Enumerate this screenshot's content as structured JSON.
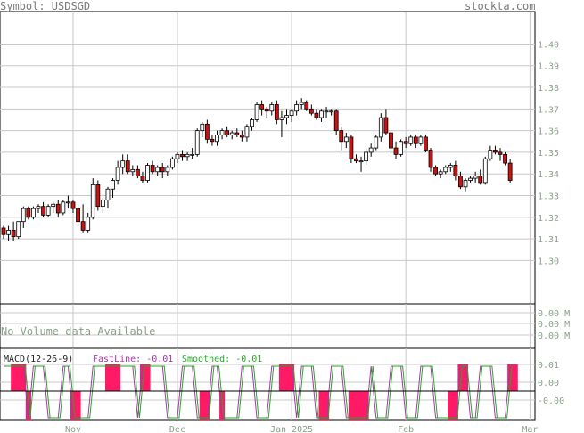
{
  "header": {
    "symbol_label": "Symbol: USDSGD",
    "site": "stockta.com"
  },
  "volume": {
    "no_data_text": "No Volume data Available",
    "axis_labels": [
      "0.00 M",
      "0.00 M",
      "0.00 M"
    ]
  },
  "macd": {
    "label": "MACD(12-26-9)",
    "fast_label": "FastLine: -0.01",
    "smoothed_label": "Smoothed: -0.01",
    "axis_labels": [
      "0.01",
      "0.00",
      "-0.00"
    ],
    "colors": {
      "fast": "#aa33aa",
      "smoothed": "#22aa22",
      "hist": "#ff1a66"
    }
  },
  "colors": {
    "grid": "#c8c8c8",
    "up": "#ffffff",
    "down": "#cc1111",
    "label": "#8aa08a"
  },
  "chart_data": {
    "type": "candlestick",
    "title": "",
    "price_axis": {
      "ylim": [
        1.28,
        1.415
      ],
      "ticks": [
        1.3,
        1.31,
        1.32,
        1.33,
        1.34,
        1.35,
        1.36,
        1.37,
        1.38,
        1.39,
        1.4
      ]
    },
    "x_ticks": [
      {
        "label": "Nov",
        "index": 14
      },
      {
        "label": "Dec",
        "index": 35
      },
      {
        "label": "Jan 2025",
        "index": 58
      },
      {
        "label": "Feb",
        "index": 81
      },
      {
        "label": "Mar",
        "index": 106
      }
    ],
    "ohlc": [
      [
        1.315,
        1.316,
        1.31,
        1.312
      ],
      [
        1.312,
        1.316,
        1.309,
        1.314
      ],
      [
        1.314,
        1.318,
        1.309,
        1.311
      ],
      [
        1.311,
        1.318,
        1.31,
        1.318
      ],
      [
        1.318,
        1.325,
        1.315,
        1.324
      ],
      [
        1.324,
        1.325,
        1.319,
        1.32
      ],
      [
        1.32,
        1.325,
        1.319,
        1.324
      ],
      [
        1.324,
        1.326,
        1.322,
        1.325
      ],
      [
        1.325,
        1.327,
        1.32,
        1.321
      ],
      [
        1.321,
        1.326,
        1.32,
        1.325
      ],
      [
        1.325,
        1.327,
        1.322,
        1.326
      ],
      [
        1.326,
        1.328,
        1.32,
        1.322
      ],
      [
        1.322,
        1.328,
        1.321,
        1.327
      ],
      [
        1.327,
        1.33,
        1.324,
        1.327
      ],
      [
        1.327,
        1.328,
        1.322,
        1.324
      ],
      [
        1.324,
        1.326,
        1.316,
        1.318
      ],
      [
        1.318,
        1.326,
        1.313,
        1.314
      ],
      [
        1.314,
        1.322,
        1.313,
        1.32
      ],
      [
        1.32,
        1.338,
        1.319,
        1.335
      ],
      [
        1.335,
        1.337,
        1.323,
        1.325
      ],
      [
        1.325,
        1.329,
        1.322,
        1.328
      ],
      [
        1.328,
        1.334,
        1.324,
        1.333
      ],
      [
        1.333,
        1.338,
        1.329,
        1.337
      ],
      [
        1.337,
        1.346,
        1.335,
        1.343
      ],
      [
        1.343,
        1.349,
        1.34,
        1.346
      ],
      [
        1.346,
        1.349,
        1.34,
        1.341
      ],
      [
        1.341,
        1.344,
        1.339,
        1.342
      ],
      [
        1.342,
        1.344,
        1.338,
        1.339
      ],
      [
        1.339,
        1.341,
        1.336,
        1.337
      ],
      [
        1.337,
        1.345,
        1.336,
        1.344
      ],
      [
        1.344,
        1.346,
        1.34,
        1.341
      ],
      [
        1.341,
        1.344,
        1.339,
        1.343
      ],
      [
        1.343,
        1.345,
        1.338,
        1.341
      ],
      [
        1.341,
        1.344,
        1.339,
        1.343
      ],
      [
        1.343,
        1.348,
        1.342,
        1.347
      ],
      [
        1.347,
        1.35,
        1.345,
        1.349
      ],
      [
        1.349,
        1.351,
        1.346,
        1.348
      ],
      [
        1.348,
        1.35,
        1.346,
        1.349
      ],
      [
        1.349,
        1.352,
        1.347,
        1.349
      ],
      [
        1.349,
        1.361,
        1.348,
        1.36
      ],
      [
        1.36,
        1.364,
        1.357,
        1.363
      ],
      [
        1.363,
        1.365,
        1.354,
        1.356
      ],
      [
        1.356,
        1.358,
        1.353,
        1.355
      ],
      [
        1.355,
        1.36,
        1.353,
        1.358
      ],
      [
        1.358,
        1.361,
        1.356,
        1.36
      ],
      [
        1.36,
        1.362,
        1.357,
        1.358
      ],
      [
        1.358,
        1.36,
        1.356,
        1.359
      ],
      [
        1.359,
        1.361,
        1.357,
        1.358
      ],
      [
        1.358,
        1.36,
        1.355,
        1.357
      ],
      [
        1.357,
        1.363,
        1.355,
        1.362
      ],
      [
        1.362,
        1.366,
        1.36,
        1.365
      ],
      [
        1.365,
        1.373,
        1.364,
        1.372
      ],
      [
        1.372,
        1.374,
        1.367,
        1.37
      ],
      [
        1.37,
        1.371,
        1.366,
        1.369
      ],
      [
        1.369,
        1.373,
        1.367,
        1.372
      ],
      [
        1.372,
        1.374,
        1.363,
        1.365
      ],
      [
        1.365,
        1.369,
        1.357,
        1.366
      ],
      [
        1.366,
        1.37,
        1.363,
        1.367
      ],
      [
        1.367,
        1.37,
        1.364,
        1.369
      ],
      [
        1.369,
        1.374,
        1.367,
        1.372
      ],
      [
        1.372,
        1.375,
        1.37,
        1.373
      ],
      [
        1.373,
        1.374,
        1.369,
        1.37
      ],
      [
        1.37,
        1.372,
        1.367,
        1.368
      ],
      [
        1.368,
        1.37,
        1.365,
        1.366
      ],
      [
        1.366,
        1.37,
        1.364,
        1.369
      ],
      [
        1.369,
        1.371,
        1.366,
        1.369
      ],
      [
        1.369,
        1.37,
        1.367,
        1.369
      ],
      [
        1.369,
        1.37,
        1.358,
        1.36
      ],
      [
        1.36,
        1.362,
        1.351,
        1.355
      ],
      [
        1.355,
        1.359,
        1.352,
        1.357
      ],
      [
        1.357,
        1.358,
        1.345,
        1.347
      ],
      [
        1.347,
        1.349,
        1.345,
        1.346
      ],
      [
        1.346,
        1.348,
        1.341,
        1.346
      ],
      [
        1.346,
        1.352,
        1.344,
        1.35
      ],
      [
        1.35,
        1.354,
        1.348,
        1.352
      ],
      [
        1.352,
        1.358,
        1.351,
        1.357
      ],
      [
        1.357,
        1.368,
        1.355,
        1.366
      ],
      [
        1.366,
        1.37,
        1.358,
        1.359
      ],
      [
        1.359,
        1.361,
        1.351,
        1.352
      ],
      [
        1.352,
        1.355,
        1.347,
        1.349
      ],
      [
        1.349,
        1.356,
        1.348,
        1.355
      ],
      [
        1.355,
        1.357,
        1.352,
        1.354
      ],
      [
        1.354,
        1.358,
        1.353,
        1.357
      ],
      [
        1.357,
        1.358,
        1.352,
        1.354
      ],
      [
        1.354,
        1.358,
        1.353,
        1.357
      ],
      [
        1.357,
        1.358,
        1.35,
        1.351
      ],
      [
        1.351,
        1.352,
        1.341,
        1.343
      ],
      [
        1.343,
        1.344,
        1.339,
        1.34
      ],
      [
        1.34,
        1.342,
        1.338,
        1.341
      ],
      [
        1.341,
        1.344,
        1.34,
        1.343
      ],
      [
        1.343,
        1.345,
        1.341,
        1.344
      ],
      [
        1.344,
        1.346,
        1.337,
        1.339
      ],
      [
        1.339,
        1.341,
        1.333,
        1.334
      ],
      [
        1.334,
        1.338,
        1.332,
        1.337
      ],
      [
        1.337,
        1.339,
        1.336,
        1.338
      ],
      [
        1.338,
        1.341,
        1.336,
        1.339
      ],
      [
        1.339,
        1.342,
        1.335,
        1.336
      ],
      [
        1.336,
        1.348,
        1.335,
        1.347
      ],
      [
        1.347,
        1.353,
        1.346,
        1.351
      ],
      [
        1.351,
        1.353,
        1.349,
        1.35
      ],
      [
        1.35,
        1.352,
        1.346,
        1.349
      ],
      [
        1.349,
        1.35,
        1.344,
        1.345
      ],
      [
        1.345,
        1.347,
        1.336,
        1.337
      ]
    ],
    "macd_hist_upper": [
      0,
      0,
      1,
      1,
      1,
      0,
      0,
      0,
      0,
      0,
      0,
      0,
      0,
      0,
      0,
      0,
      0,
      0,
      0,
      0,
      0,
      1,
      1,
      1,
      0,
      0,
      0,
      0,
      1,
      1,
      0,
      0,
      0,
      0,
      0,
      0,
      0,
      0,
      0,
      0,
      0,
      0,
      0,
      0,
      0,
      0,
      0,
      0,
      0,
      0,
      0,
      0,
      0,
      0,
      0,
      0,
      1,
      1,
      1,
      0,
      0,
      0,
      0,
      0,
      0,
      0,
      0,
      0,
      0,
      0,
      0,
      0,
      0,
      0,
      0,
      0,
      0,
      0,
      0,
      0,
      0,
      0,
      0,
      0,
      0,
      0,
      0,
      0,
      0,
      0,
      0,
      0,
      1,
      1,
      0,
      0,
      0,
      0,
      0,
      0,
      0,
      0,
      1,
      1,
      0,
      0,
      0
    ],
    "macd_hist_lower": [
      0,
      0,
      0,
      0,
      0,
      1,
      0,
      0,
      0,
      0,
      0,
      0,
      0,
      0,
      1,
      1,
      0,
      0,
      0,
      0,
      0,
      0,
      0,
      0,
      0,
      0,
      0,
      0,
      0,
      0,
      0,
      0,
      0,
      0,
      0,
      0,
      0,
      0,
      0,
      0,
      1,
      1,
      0,
      0,
      1,
      0,
      0,
      0,
      0,
      0,
      0,
      0,
      0,
      0,
      0,
      0,
      0,
      0,
      0,
      0,
      0,
      0,
      0,
      0,
      1,
      1,
      0,
      0,
      0,
      0,
      1,
      1,
      1,
      1,
      0,
      0,
      0,
      0,
      0,
      0,
      0,
      0,
      0,
      0,
      0,
      0,
      0,
      0,
      0,
      0,
      1,
      1,
      0,
      0,
      0,
      0,
      0,
      0,
      0,
      0,
      0,
      0,
      0,
      0,
      0,
      0,
      0
    ]
  }
}
